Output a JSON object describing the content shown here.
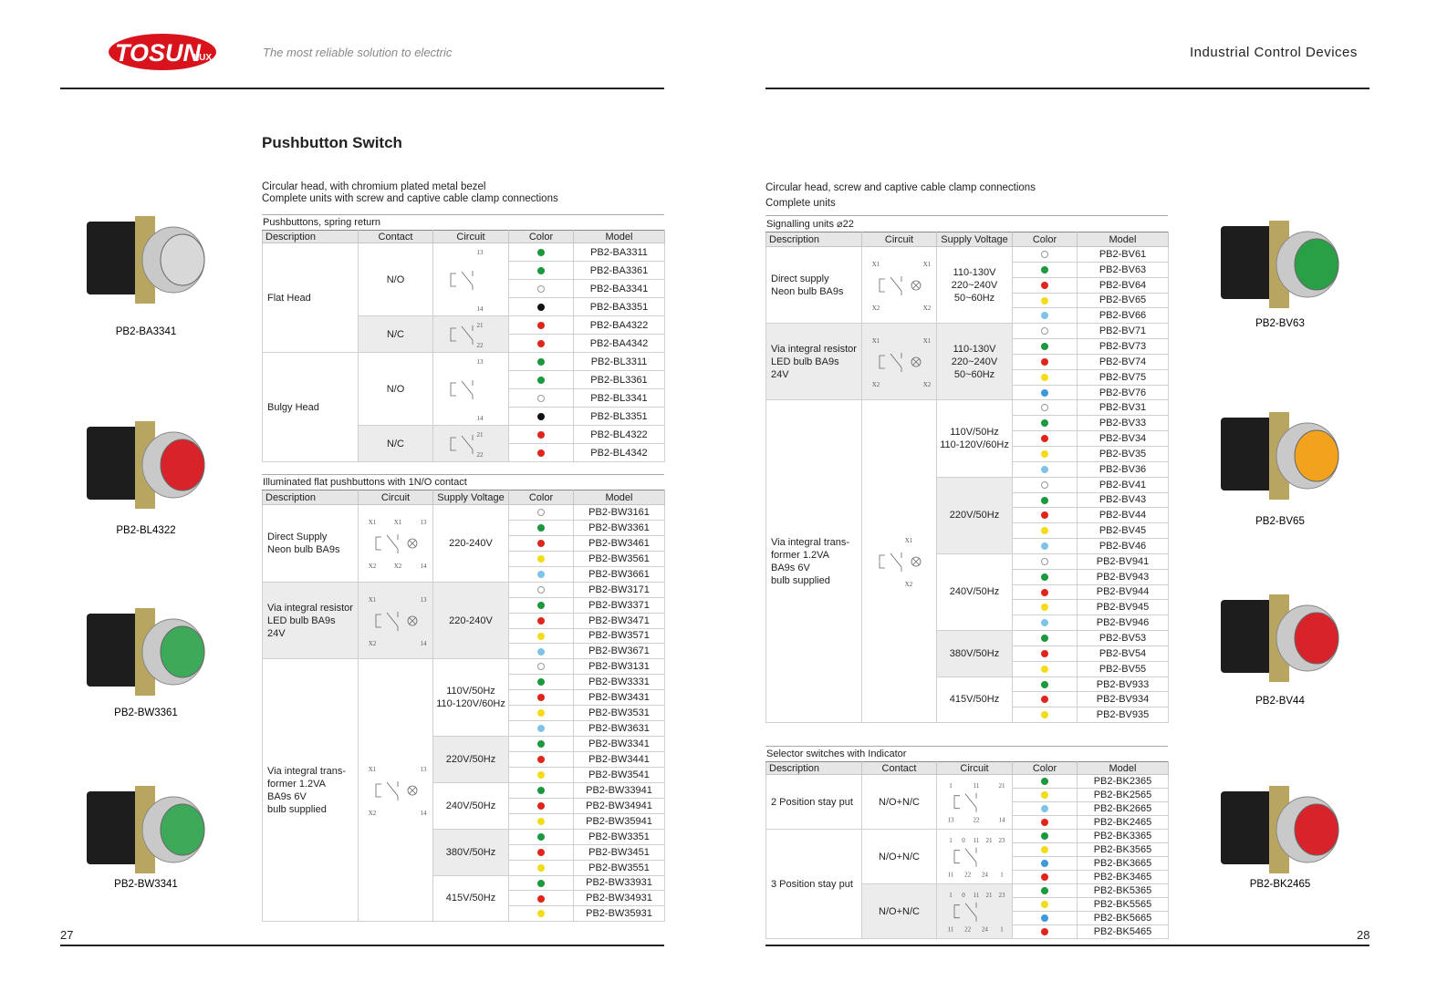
{
  "header": {
    "logo": "TOSUN",
    "logo_suffix": "LUX",
    "tagline": "The most reliable solution to electric",
    "section": "Industrial Control Devices"
  },
  "left_page": {
    "title": "Pushbutton Switch",
    "intro": [
      "Circular head, with chromium plated metal bezel",
      "Complete units with screw and captive cable clamp connections"
    ],
    "page_number": "27",
    "products": [
      {
        "label": "PB2-BA3341",
        "color": "#d8d8d8"
      },
      {
        "label": "PB2-BL4322",
        "color": "#d8232a"
      },
      {
        "label": "PB2-BW3361",
        "color": "#3daa5a"
      },
      {
        "label": "PB2-BW3341",
        "color": "#3daa5a"
      }
    ],
    "tables": [
      {
        "caption": "Pushbuttons, spring return",
        "headers": [
          "Description",
          "Contact",
          "Circuit",
          "Color",
          "Model"
        ],
        "groups": [
          {
            "description": "Flat Head",
            "subs": [
              {
                "contact": "N/O",
                "circuit": [
                  "13",
                  "14"
                ],
                "rows": [
                  {
                    "color": "#1a9a3c",
                    "model": "PB2-BA3311"
                  },
                  {
                    "color": "#1a9a3c",
                    "model": "PB2-BA3361"
                  },
                  {
                    "color": "#ffffff",
                    "model": "PB2-BA3341"
                  },
                  {
                    "color": "#111111",
                    "model": "PB2-BA3351"
                  }
                ]
              },
              {
                "contact": "N/C",
                "circuit": [
                  "21",
                  "22"
                ],
                "rows": [
                  {
                    "color": "#e0261b",
                    "model": "PB2-BA4322"
                  },
                  {
                    "color": "#e0261b",
                    "model": "PB2-BA4342"
                  }
                ]
              }
            ]
          },
          {
            "description": "Bulgy Head",
            "subs": [
              {
                "contact": "N/O",
                "circuit": [
                  "13",
                  "14"
                ],
                "rows": [
                  {
                    "color": "#1a9a3c",
                    "model": "PB2-BL3311"
                  },
                  {
                    "color": "#1a9a3c",
                    "model": "PB2-BL3361"
                  },
                  {
                    "color": "#ffffff",
                    "model": "PB2-BL3341"
                  },
                  {
                    "color": "#111111",
                    "model": "PB2-BL3351"
                  }
                ]
              },
              {
                "contact": "N/C",
                "circuit": [
                  "21",
                  "22"
                ],
                "rows": [
                  {
                    "color": "#e0261b",
                    "model": "PB2-BL4322"
                  },
                  {
                    "color": "#e0261b",
                    "model": "PB2-BL4342"
                  }
                ]
              }
            ]
          }
        ]
      },
      {
        "caption": "Illuminated flat pushbuttons with 1N/O contact",
        "headers": [
          "Description",
          "Circuit",
          "Supply Voltage",
          "Color",
          "Model"
        ],
        "groups": [
          {
            "description": "Direct Supply\nNeon bulb BA9s",
            "circuit": [
              "X1",
              "X1",
              "13",
              "X2",
              "X2",
              "14"
            ],
            "subs": [
              {
                "supply_voltage": "220-240V",
                "rows": [
                  {
                    "color": "#ffffff",
                    "model": "PB2-BW3161"
                  },
                  {
                    "color": "#1a9a3c",
                    "model": "PB2-BW3361"
                  },
                  {
                    "color": "#e0261b",
                    "model": "PB2-BW3461"
                  },
                  {
                    "color": "#f2dc1a",
                    "model": "PB2-BW3561"
                  },
                  {
                    "color": "#7fc3e8",
                    "model": "PB2-BW3661"
                  }
                ]
              }
            ]
          },
          {
            "description": "Via integral resistor\nLED bulb BA9s\n24V",
            "circuit": [
              "X1",
              "13",
              "X2",
              "14"
            ],
            "subs": [
              {
                "supply_voltage": "220-240V",
                "rows": [
                  {
                    "color": "#ffffff",
                    "model": "PB2-BW3171"
                  },
                  {
                    "color": "#1a9a3c",
                    "model": "PB2-BW3371"
                  },
                  {
                    "color": "#e0261b",
                    "model": "PB2-BW3471"
                  },
                  {
                    "color": "#f2dc1a",
                    "model": "PB2-BW3571"
                  },
                  {
                    "color": "#7fc3e8",
                    "model": "PB2-BW3671"
                  }
                ]
              }
            ]
          },
          {
            "description": "Via integral trans-\nformer 1.2VA\nBA9s 6V\nbulb supplied",
            "circuit": [
              "X1",
              "13",
              "X2",
              "14"
            ],
            "subs": [
              {
                "supply_voltage": "110V/50Hz\n110-120V/60Hz",
                "rows": [
                  {
                    "color": "#ffffff",
                    "model": "PB2-BW3131"
                  },
                  {
                    "color": "#1a9a3c",
                    "model": "PB2-BW3331"
                  },
                  {
                    "color": "#e0261b",
                    "model": "PB2-BW3431"
                  },
                  {
                    "color": "#f2dc1a",
                    "model": "PB2-BW3531"
                  },
                  {
                    "color": "#7fc3e8",
                    "model": "PB2-BW3631"
                  }
                ]
              },
              {
                "supply_voltage": "220V/50Hz",
                "rows": [
                  {
                    "color": "#1a9a3c",
                    "model": "PB2-BW3341"
                  },
                  {
                    "color": "#e0261b",
                    "model": "PB2-BW3441"
                  },
                  {
                    "color": "#f2dc1a",
                    "model": "PB2-BW3541"
                  }
                ]
              },
              {
                "supply_voltage": "240V/50Hz",
                "rows": [
                  {
                    "color": "#1a9a3c",
                    "model": "PB2-BW33941"
                  },
                  {
                    "color": "#e0261b",
                    "model": "PB2-BW34941"
                  },
                  {
                    "color": "#f2dc1a",
                    "model": "PB2-BW35941"
                  }
                ]
              },
              {
                "supply_voltage": "380V/50Hz",
                "rows": [
                  {
                    "color": "#1a9a3c",
                    "model": "PB2-BW3351"
                  },
                  {
                    "color": "#e0261b",
                    "model": "PB2-BW3451"
                  },
                  {
                    "color": "#f2dc1a",
                    "model": "PB2-BW3551"
                  }
                ]
              },
              {
                "supply_voltage": "415V/50Hz",
                "rows": [
                  {
                    "color": "#1a9a3c",
                    "model": "PB2-BW33931"
                  },
                  {
                    "color": "#e0261b",
                    "model": "PB2-BW34931"
                  },
                  {
                    "color": "#f2dc1a",
                    "model": "PB2-BW35931"
                  }
                ]
              }
            ]
          }
        ]
      }
    ]
  },
  "right_page": {
    "intro": [
      "Circular head, screw and captive cable clamp connections",
      "Complete units"
    ],
    "page_number": "28",
    "products": [
      {
        "label": "PB2-BV63",
        "color": "#2aa046"
      },
      {
        "label": "PB2-BV65",
        "color": "#f2a21c"
      },
      {
        "label": "PB2-BV44",
        "color": "#d8232a"
      },
      {
        "label": "PB2-BK2465",
        "color": "#d8232a"
      }
    ],
    "tables": [
      {
        "caption": "Signalling units ⌀22",
        "headers": [
          "Description",
          "Circuit",
          "Supply Voltage",
          "Color",
          "Model"
        ],
        "groups": [
          {
            "description": "Direct supply\nNeon bulb BA9s",
            "circuit": [
              "X1",
              "X1",
              "X2",
              "X2"
            ],
            "subs": [
              {
                "supply_voltage": "110-130V\n220~240V\n50~60Hz",
                "rows": [
                  {
                    "color": "#ffffff",
                    "model": "PB2-BV61"
                  },
                  {
                    "color": "#1a9a3c",
                    "model": "PB2-BV63"
                  },
                  {
                    "color": "#e0261b",
                    "model": "PB2-BV64"
                  },
                  {
                    "color": "#f2dc1a",
                    "model": "PB2-BV65"
                  },
                  {
                    "color": "#7fc3e8",
                    "model": "PB2-BV66"
                  }
                ]
              }
            ]
          },
          {
            "description": "Via integral resistor\nLED bulb BA9s\n24V",
            "circuit": [
              "X1",
              "X1",
              "X2",
              "X2"
            ],
            "subs": [
              {
                "supply_voltage": "110-130V\n220~240V\n50~60Hz",
                "rows": [
                  {
                    "color": "#ffffff",
                    "model": "PB2-BV71"
                  },
                  {
                    "color": "#1a9a3c",
                    "model": "PB2-BV73"
                  },
                  {
                    "color": "#e0261b",
                    "model": "PB2-BV74"
                  },
                  {
                    "color": "#f2dc1a",
                    "model": "PB2-BV75"
                  },
                  {
                    "color": "#3c9ad8",
                    "model": "PB2-BV76"
                  }
                ]
              }
            ]
          },
          {
            "description": "Via integral trans-\nformer 1.2VA\nBA9s 6V\nbulb supplied",
            "circuit": [
              "X1",
              "X2"
            ],
            "subs": [
              {
                "supply_voltage": "110V/50Hz\n110-120V/60Hz",
                "rows": [
                  {
                    "color": "#ffffff",
                    "model": "PB2-BV31"
                  },
                  {
                    "color": "#1a9a3c",
                    "model": "PB2-BV33"
                  },
                  {
                    "color": "#e0261b",
                    "model": "PB2-BV34"
                  },
                  {
                    "color": "#f2dc1a",
                    "model": "PB2-BV35"
                  },
                  {
                    "color": "#7fc3e8",
                    "model": "PB2-BV36"
                  }
                ]
              },
              {
                "supply_voltage": "220V/50Hz",
                "rows": [
                  {
                    "color": "#ffffff",
                    "model": "PB2-BV41"
                  },
                  {
                    "color": "#1a9a3c",
                    "model": "PB2-BV43"
                  },
                  {
                    "color": "#e0261b",
                    "model": "PB2-BV44"
                  },
                  {
                    "color": "#f2dc1a",
                    "model": "PB2-BV45"
                  },
                  {
                    "color": "#7fc3e8",
                    "model": "PB2-BV46"
                  }
                ]
              },
              {
                "supply_voltage": "240V/50Hz",
                "rows": [
                  {
                    "color": "#ffffff",
                    "model": "PB2-BV941"
                  },
                  {
                    "color": "#1a9a3c",
                    "model": "PB2-BV943"
                  },
                  {
                    "color": "#e0261b",
                    "model": "PB2-BV944"
                  },
                  {
                    "color": "#f2dc1a",
                    "model": "PB2-BV945"
                  },
                  {
                    "color": "#7fc3e8",
                    "model": "PB2-BV946"
                  }
                ]
              },
              {
                "supply_voltage": "380V/50Hz",
                "rows": [
                  {
                    "color": "#1a9a3c",
                    "model": "PB2-BV53"
                  },
                  {
                    "color": "#e0261b",
                    "model": "PB2-BV54"
                  },
                  {
                    "color": "#f2dc1a",
                    "model": "PB2-BV55"
                  }
                ]
              },
              {
                "supply_voltage": "415V/50Hz",
                "rows": [
                  {
                    "color": "#1a9a3c",
                    "model": "PB2-BV933"
                  },
                  {
                    "color": "#e0261b",
                    "model": "PB2-BV934"
                  },
                  {
                    "color": "#f2dc1a",
                    "model": "PB2-BV935"
                  }
                ]
              }
            ]
          }
        ]
      },
      {
        "caption": "Selector switches with Indicator",
        "headers": [
          "Description",
          "Contact",
          "Circuit",
          "Color",
          "Model"
        ],
        "groups": [
          {
            "description": "2 Position stay put",
            "subs": [
              {
                "contact": "N/O+N/C",
                "circuit": [
                  "1",
                  "11",
                  "21",
                  "13",
                  "22",
                  "14"
                ],
                "rows": [
                  {
                    "color": "#1a9a3c",
                    "model": "PB2-BK2365"
                  },
                  {
                    "color": "#f2dc1a",
                    "model": "PB2-BK2565"
                  },
                  {
                    "color": "#7fc3e8",
                    "model": "PB2-BK2665"
                  },
                  {
                    "color": "#e0261b",
                    "model": "PB2-BK2465"
                  }
                ]
              }
            ]
          },
          {
            "description": "3 Position stay put",
            "subs": [
              {
                "contact": "N/O+N/C",
                "circuit": [
                  "1",
                  "0",
                  "11",
                  "21",
                  "23",
                  "11",
                  "22",
                  "24",
                  "1"
                ],
                "rows": [
                  {
                    "color": "#1a9a3c",
                    "model": "PB2-BK3365"
                  },
                  {
                    "color": "#f2dc1a",
                    "model": "PB2-BK3565"
                  },
                  {
                    "color": "#3c9ad8",
                    "model": "PB2-BK3665"
                  },
                  {
                    "color": "#e0261b",
                    "model": "PB2-BK3465"
                  }
                ]
              },
              {
                "contact": "N/O+N/C",
                "circuit": [
                  "1",
                  "0",
                  "11",
                  "21",
                  "23",
                  "11",
                  "22",
                  "24",
                  "1"
                ],
                "rows": [
                  {
                    "color": "#1a9a3c",
                    "model": "PB2-BK5365"
                  },
                  {
                    "color": "#f2dc1a",
                    "model": "PB2-BK5565"
                  },
                  {
                    "color": "#3c9ad8",
                    "model": "PB2-BK5665"
                  },
                  {
                    "color": "#e0261b",
                    "model": "PB2-BK5465"
                  }
                ]
              }
            ]
          }
        ]
      }
    ]
  }
}
